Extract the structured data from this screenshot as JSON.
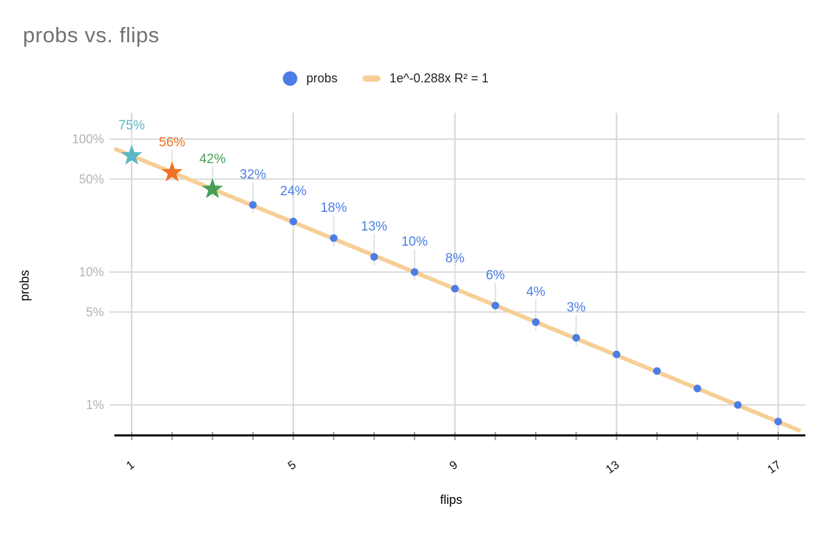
{
  "header": {
    "title": "probs vs. flips"
  },
  "legend": {
    "items": [
      {
        "label": "probs",
        "swatch": "circle",
        "color": "#4b7de6"
      },
      {
        "label": "1e^-0.288x R² = 1",
        "swatch": "line",
        "color": "#f6cf97"
      }
    ]
  },
  "chart_data": {
    "type": "scatter",
    "title": "probs vs. flips",
    "xlabel": "flips",
    "ylabel": "probs",
    "y_scale": "log",
    "grid": true,
    "legend_position": "top",
    "xlim": [
      0.57,
      17.6
    ],
    "ylim": [
      0.0065,
      0.85
    ],
    "points": [
      {
        "x": 1,
        "y": 0.75,
        "label": "75%",
        "shape": "star",
        "color": "#5bb7c5"
      },
      {
        "x": 2,
        "y": 0.56,
        "label": "56%",
        "shape": "star",
        "color": "#ed7424"
      },
      {
        "x": 3,
        "y": 0.42,
        "label": "42%",
        "shape": "star",
        "color": "#47a056"
      },
      {
        "x": 4,
        "y": 0.32,
        "label": "32%",
        "shape": "circle",
        "color": "#4b7de6"
      },
      {
        "x": 5,
        "y": 0.24,
        "label": "24%",
        "shape": "circle",
        "color": "#4b7de6"
      },
      {
        "x": 6,
        "y": 0.18,
        "label": "18%",
        "shape": "circle",
        "color": "#4b7de6"
      },
      {
        "x": 7,
        "y": 0.13,
        "label": "13%",
        "shape": "circle",
        "color": "#4b7de6"
      },
      {
        "x": 8,
        "y": 0.1,
        "label": "10%",
        "shape": "circle",
        "color": "#4b7de6"
      },
      {
        "x": 9,
        "y": 0.075,
        "label": "8%",
        "shape": "circle",
        "color": "#4b7de6"
      },
      {
        "x": 10,
        "y": 0.056,
        "label": "6%",
        "shape": "circle",
        "color": "#4b7de6"
      },
      {
        "x": 11,
        "y": 0.042,
        "label": "4%",
        "shape": "circle",
        "color": "#4b7de6"
      },
      {
        "x": 12,
        "y": 0.032,
        "label": "3%",
        "shape": "circle",
        "color": "#4b7de6"
      },
      {
        "x": 13,
        "y": 0.024,
        "label": "",
        "shape": "circle",
        "color": "#4b7de6"
      },
      {
        "x": 14,
        "y": 0.018,
        "label": "",
        "shape": "circle",
        "color": "#4b7de6"
      },
      {
        "x": 15,
        "y": 0.0133,
        "label": "",
        "shape": "circle",
        "color": "#4b7de6"
      },
      {
        "x": 16,
        "y": 0.01,
        "label": "",
        "shape": "circle",
        "color": "#4b7de6"
      },
      {
        "x": 17,
        "y": 0.0075,
        "label": "",
        "shape": "circle",
        "color": "#4b7de6"
      }
    ],
    "trendline": {
      "label": "1e^-0.288x R² = 1",
      "a": 1,
      "b": -0.288,
      "r2": 1,
      "color": "#f6cf97"
    },
    "y_ticks": [
      {
        "label": "100%",
        "value": 1
      },
      {
        "label": "50%",
        "value": 0.5
      },
      {
        "label": "10%",
        "value": 0.1
      },
      {
        "label": "5%",
        "value": 0.05
      },
      {
        "label": "1%",
        "value": 0.01
      }
    ],
    "x_ticks_labeled": [
      {
        "label": "1",
        "value": 1
      },
      {
        "label": "5",
        "value": 5
      },
      {
        "label": "9",
        "value": 9
      },
      {
        "label": "13",
        "value": 13
      },
      {
        "label": "17",
        "value": 17
      }
    ],
    "x_minor_tick_range": [
      1,
      17
    ]
  },
  "colors": {
    "title_text": "#727272",
    "legend_text": "#212121",
    "gridline": "#d9d9d9",
    "vertical_gridline": "#d6d6d6",
    "minor_tick": "#9e9e9e",
    "y_tick_label": "#b3b3b3",
    "x_tick_label": "#111111",
    "axis_line": "#000000",
    "leader_line": "#e2e2e2"
  }
}
